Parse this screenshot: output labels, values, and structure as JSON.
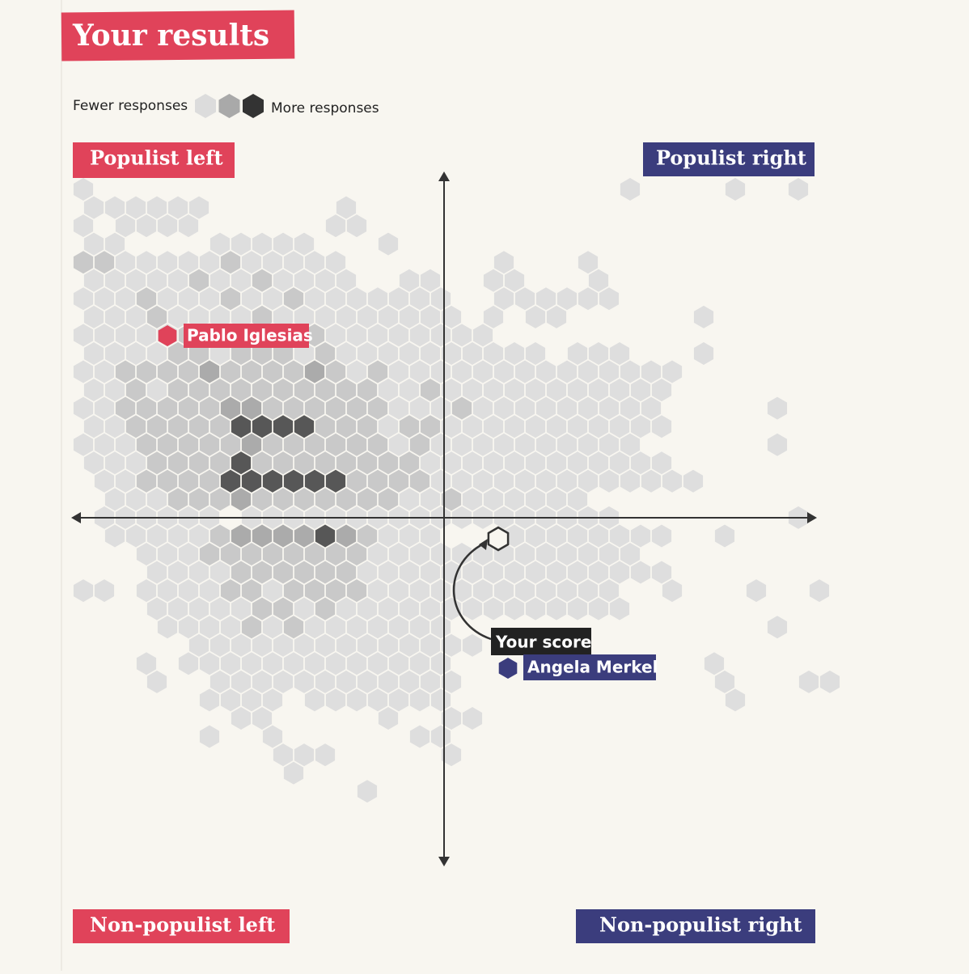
{
  "title": "Your results",
  "legend": {
    "fewer": "Fewer responses",
    "more": "More responses",
    "colors": [
      "#dcdcdc",
      "#a9a9a9",
      "#333333"
    ]
  },
  "quadrants": {
    "top_left": "Populist left",
    "top_right": "Populist right",
    "bottom_left": "Non-populist left",
    "bottom_right": "Non-populist right"
  },
  "markers": {
    "you": "Your score",
    "left_figure": "Pablo Iglesias",
    "right_figure": "Angela Merkel"
  },
  "hexbin": {
    "level_colors": [
      "#dedede",
      "#c9c9c9",
      "#ababab",
      "#575757"
    ],
    "rows": [
      [
        1,
        0,
        0,
        0,
        0,
        0,
        0,
        0,
        0,
        0,
        0,
        0,
        0,
        0,
        0,
        0,
        0,
        0,
        0,
        0,
        0,
        0,
        0,
        0,
        0,
        0,
        1,
        0,
        0,
        0,
        0,
        1,
        0,
        0,
        1
      ],
      [
        1,
        1,
        1,
        1,
        1,
        1,
        0,
        0,
        0,
        0,
        0,
        0,
        1
      ],
      [
        1,
        0,
        1,
        1,
        1,
        1,
        0,
        0,
        0,
        0,
        0,
        0,
        1,
        1
      ],
      [
        1,
        1,
        0,
        0,
        0,
        0,
        1,
        1,
        1,
        1,
        1,
        0,
        0,
        0,
        1
      ],
      [
        2,
        2,
        1,
        1,
        1,
        1,
        1,
        2,
        1,
        1,
        1,
        1,
        1,
        0,
        0,
        0,
        0,
        0,
        0,
        0,
        1,
        0,
        0,
        0,
        1
      ],
      [
        1,
        1,
        1,
        1,
        1,
        2,
        1,
        1,
        2,
        1,
        1,
        1,
        1,
        0,
        0,
        1,
        1,
        0,
        0,
        1,
        1,
        0,
        0,
        0,
        1
      ],
      [
        1,
        1,
        1,
        2,
        1,
        1,
        1,
        2,
        1,
        1,
        2,
        1,
        1,
        1,
        1,
        1,
        1,
        1,
        0,
        0,
        1,
        1,
        1,
        1,
        1,
        1
      ],
      [
        1,
        1,
        1,
        2,
        1,
        1,
        1,
        1,
        2,
        1,
        1,
        1,
        1,
        1,
        1,
        1,
        1,
        1,
        0,
        1,
        0,
        1,
        1,
        0,
        0,
        0,
        0,
        0,
        0,
        1
      ],
      [
        1,
        1,
        1,
        1,
        1,
        2,
        1,
        1,
        2,
        1,
        1,
        2,
        1,
        1,
        1,
        1,
        1,
        1,
        1,
        1,
        0,
        0,
        0,
        0,
        0,
        0,
        0,
        0,
        0,
        0
      ],
      [
        1,
        1,
        1,
        1,
        2,
        2,
        1,
        2,
        2,
        2,
        1,
        2,
        1,
        1,
        1,
        1,
        1,
        1,
        1,
        1,
        1,
        1,
        0,
        1,
        1,
        1,
        0,
        0,
        0,
        1
      ],
      [
        1,
        1,
        2,
        2,
        2,
        2,
        3,
        2,
        2,
        2,
        2,
        3,
        2,
        1,
        2,
        1,
        1,
        1,
        1,
        1,
        1,
        1,
        1,
        1,
        1,
        1,
        1,
        1,
        1
      ],
      [
        1,
        1,
        2,
        1,
        2,
        2,
        2,
        2,
        2,
        2,
        2,
        2,
        2,
        2,
        1,
        1,
        2,
        1,
        1,
        1,
        1,
        1,
        1,
        1,
        1,
        1,
        1,
        1
      ],
      [
        1,
        1,
        2,
        2,
        2,
        2,
        2,
        3,
        3,
        2,
        2,
        2,
        2,
        2,
        2,
        1,
        1,
        1,
        2,
        1,
        1,
        1,
        1,
        1,
        1,
        1,
        1,
        1,
        0,
        0,
        0,
        0,
        0,
        1
      ],
      [
        1,
        1,
        2,
        2,
        2,
        2,
        2,
        4,
        4,
        4,
        4,
        2,
        2,
        2,
        1,
        2,
        2,
        1,
        1,
        1,
        1,
        1,
        1,
        1,
        1,
        1,
        1,
        1
      ],
      [
        1,
        1,
        1,
        2,
        2,
        2,
        2,
        2,
        3,
        2,
        2,
        2,
        2,
        2,
        2,
        1,
        2,
        1,
        1,
        1,
        1,
        1,
        1,
        1,
        1,
        1,
        1,
        0,
        0,
        0,
        0,
        0,
        0,
        1
      ],
      [
        1,
        1,
        1,
        2,
        2,
        2,
        2,
        4,
        2,
        2,
        2,
        2,
        2,
        2,
        2,
        2,
        1,
        1,
        1,
        1,
        1,
        1,
        1,
        1,
        1,
        1,
        1,
        1
      ],
      [
        0,
        1,
        1,
        2,
        2,
        2,
        2,
        4,
        4,
        4,
        4,
        4,
        4,
        2,
        2,
        2,
        2,
        1,
        1,
        1,
        1,
        1,
        1,
        1,
        1,
        1,
        1,
        1,
        1,
        1
      ],
      [
        0,
        1,
        1,
        1,
        2,
        2,
        2,
        3,
        2,
        2,
        2,
        2,
        2,
        2,
        2,
        1,
        1,
        2,
        1,
        1,
        1,
        1,
        1,
        1
      ],
      [
        0,
        1,
        1,
        1,
        1,
        1,
        1,
        0,
        1,
        1,
        1,
        1,
        1,
        1,
        1,
        1,
        1,
        1,
        1,
        1,
        1,
        1,
        1,
        1,
        1,
        1,
        0,
        0,
        0,
        0,
        0,
        0,
        0,
        0,
        1
      ],
      [
        0,
        1,
        1,
        1,
        1,
        1,
        2,
        3,
        3,
        3,
        3,
        4,
        3,
        2,
        1,
        1,
        1,
        0,
        0,
        0,
        1,
        1,
        1,
        1,
        1,
        1,
        1,
        1,
        0,
        0,
        1
      ],
      [
        0,
        0,
        0,
        1,
        1,
        1,
        2,
        2,
        2,
        2,
        2,
        2,
        2,
        2,
        1,
        1,
        1,
        1,
        1,
        1,
        1,
        1,
        1,
        1,
        1,
        1,
        1
      ],
      [
        0,
        0,
        0,
        1,
        1,
        1,
        1,
        2,
        2,
        2,
        2,
        2,
        2,
        1,
        1,
        1,
        1,
        1,
        1,
        1,
        1,
        1,
        1,
        1,
        1,
        1,
        1,
        1
      ],
      [
        1,
        1,
        0,
        1,
        1,
        1,
        1,
        2,
        2,
        1,
        2,
        2,
        2,
        2,
        1,
        1,
        1,
        1,
        1,
        1,
        1,
        1,
        1,
        1,
        1,
        1,
        0,
        0,
        1,
        0,
        0,
        0,
        1,
        0,
        0,
        1
      ],
      [
        0,
        0,
        0,
        1,
        1,
        1,
        1,
        1,
        2,
        2,
        1,
        2,
        1,
        1,
        1,
        1,
        1,
        1,
        1,
        1,
        1,
        1,
        1,
        1,
        1,
        1
      ],
      [
        0,
        0,
        0,
        0,
        1,
        1,
        1,
        1,
        2,
        1,
        2,
        1,
        1,
        1,
        1,
        1,
        1,
        1,
        0,
        0,
        0,
        0,
        0,
        0,
        0,
        0,
        0,
        0,
        0,
        0,
        0,
        0,
        0,
        1
      ],
      [
        0,
        0,
        0,
        0,
        0,
        1,
        1,
        1,
        1,
        1,
        1,
        1,
        1,
        1,
        1,
        1,
        1,
        1,
        1
      ],
      [
        0,
        0,
        0,
        1,
        0,
        1,
        1,
        1,
        1,
        1,
        1,
        1,
        1,
        1,
        1,
        1,
        1,
        1,
        0,
        0,
        0,
        0,
        0,
        0,
        0,
        0,
        0,
        0,
        0,
        0,
        1,
        0,
        0,
        0,
        0,
        0
      ],
      [
        0,
        0,
        0,
        1,
        0,
        0,
        1,
        1,
        1,
        1,
        1,
        1,
        1,
        1,
        1,
        1,
        1,
        1,
        0,
        0,
        0,
        0,
        0,
        0,
        0,
        0,
        0,
        0,
        0,
        0,
        1,
        0,
        0,
        0,
        1,
        1
      ],
      [
        0,
        0,
        0,
        0,
        0,
        0,
        1,
        1,
        1,
        1,
        0,
        1,
        1,
        1,
        1,
        1,
        1,
        1,
        0,
        0,
        0,
        0,
        0,
        0,
        0,
        0,
        0,
        0,
        0,
        0,
        0,
        1
      ],
      [
        0,
        0,
        0,
        0,
        0,
        0,
        0,
        1,
        1,
        0,
        0,
        0,
        0,
        0,
        1,
        0,
        0,
        1,
        1
      ],
      [
        0,
        0,
        0,
        0,
        0,
        0,
        1,
        0,
        0,
        1,
        0,
        0,
        0,
        0,
        0,
        0,
        1,
        1
      ],
      [
        0,
        0,
        0,
        0,
        0,
        0,
        0,
        0,
        0,
        1,
        1,
        1,
        0,
        0,
        0,
        0,
        0,
        1
      ],
      [
        0,
        0,
        0,
        0,
        0,
        0,
        0,
        0,
        0,
        0,
        1
      ],
      [
        0,
        0,
        0,
        0,
        0,
        0,
        0,
        0,
        0,
        0,
        0,
        0,
        0,
        1
      ]
    ]
  }
}
